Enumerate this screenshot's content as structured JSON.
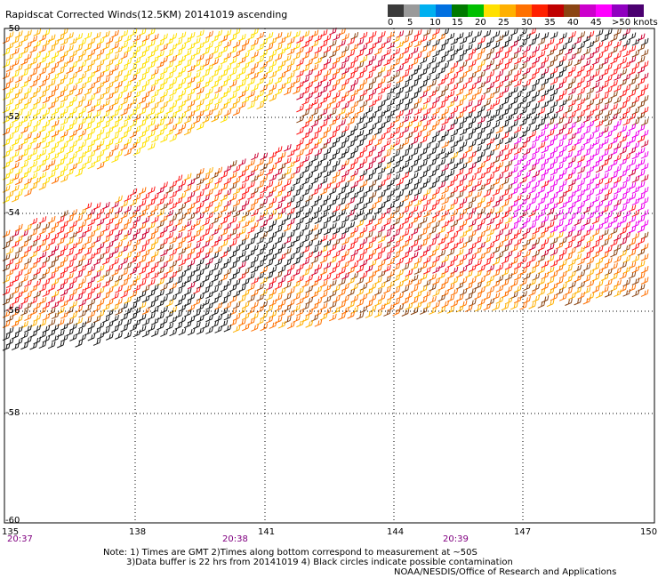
{
  "title": "Rapidscat Corrected Winds(12.5KM) 20141019 ascending",
  "colorbar": {
    "colors": [
      "#3a3a3a",
      "#9a9a9a",
      "#00b0f0",
      "#0070e0",
      "#007a00",
      "#00c000",
      "#ffe000",
      "#ffb000",
      "#ff7000",
      "#ff2000",
      "#c00000",
      "#8b4513",
      "#cc00cc",
      "#ff00ff",
      "#9000c0",
      "#4b0070"
    ],
    "labels": [
      "0",
      "5",
      "10",
      "15",
      "20",
      "25",
      "30",
      "35",
      "40",
      "45",
      ">50 knots"
    ]
  },
  "lat_labels": [
    "-50",
    "-52",
    "-54",
    "-56",
    "-58",
    "-60"
  ],
  "lon_labels": [
    "135",
    "138",
    "141",
    "144",
    "147",
    "150"
  ],
  "time_labels": [
    "20:37",
    "20:38",
    "20:39"
  ],
  "notes": {
    "line1": "Note: 1) Times are GMT 2)Times along bottom correspond to measurement at ~50S",
    "line2": "3)Data buffer is 22 hrs from 20141019 4) Black circles indicate possible contamination",
    "line3": "NOAA/NESDIS/Office of Research and Applications"
  },
  "map_data": {
    "lon_range": [
      135,
      150
    ],
    "lat_range": [
      -60,
      -50
    ],
    "wind_palette": {
      "gray": "#1a1a1a",
      "yellow": "#ffe000",
      "gold": "#ffb000",
      "orange": "#ff7000",
      "red": "#ff1a1a",
      "crimson": "#cc0033",
      "brown": "#8b4513",
      "magenta": "#ee00ee"
    }
  }
}
